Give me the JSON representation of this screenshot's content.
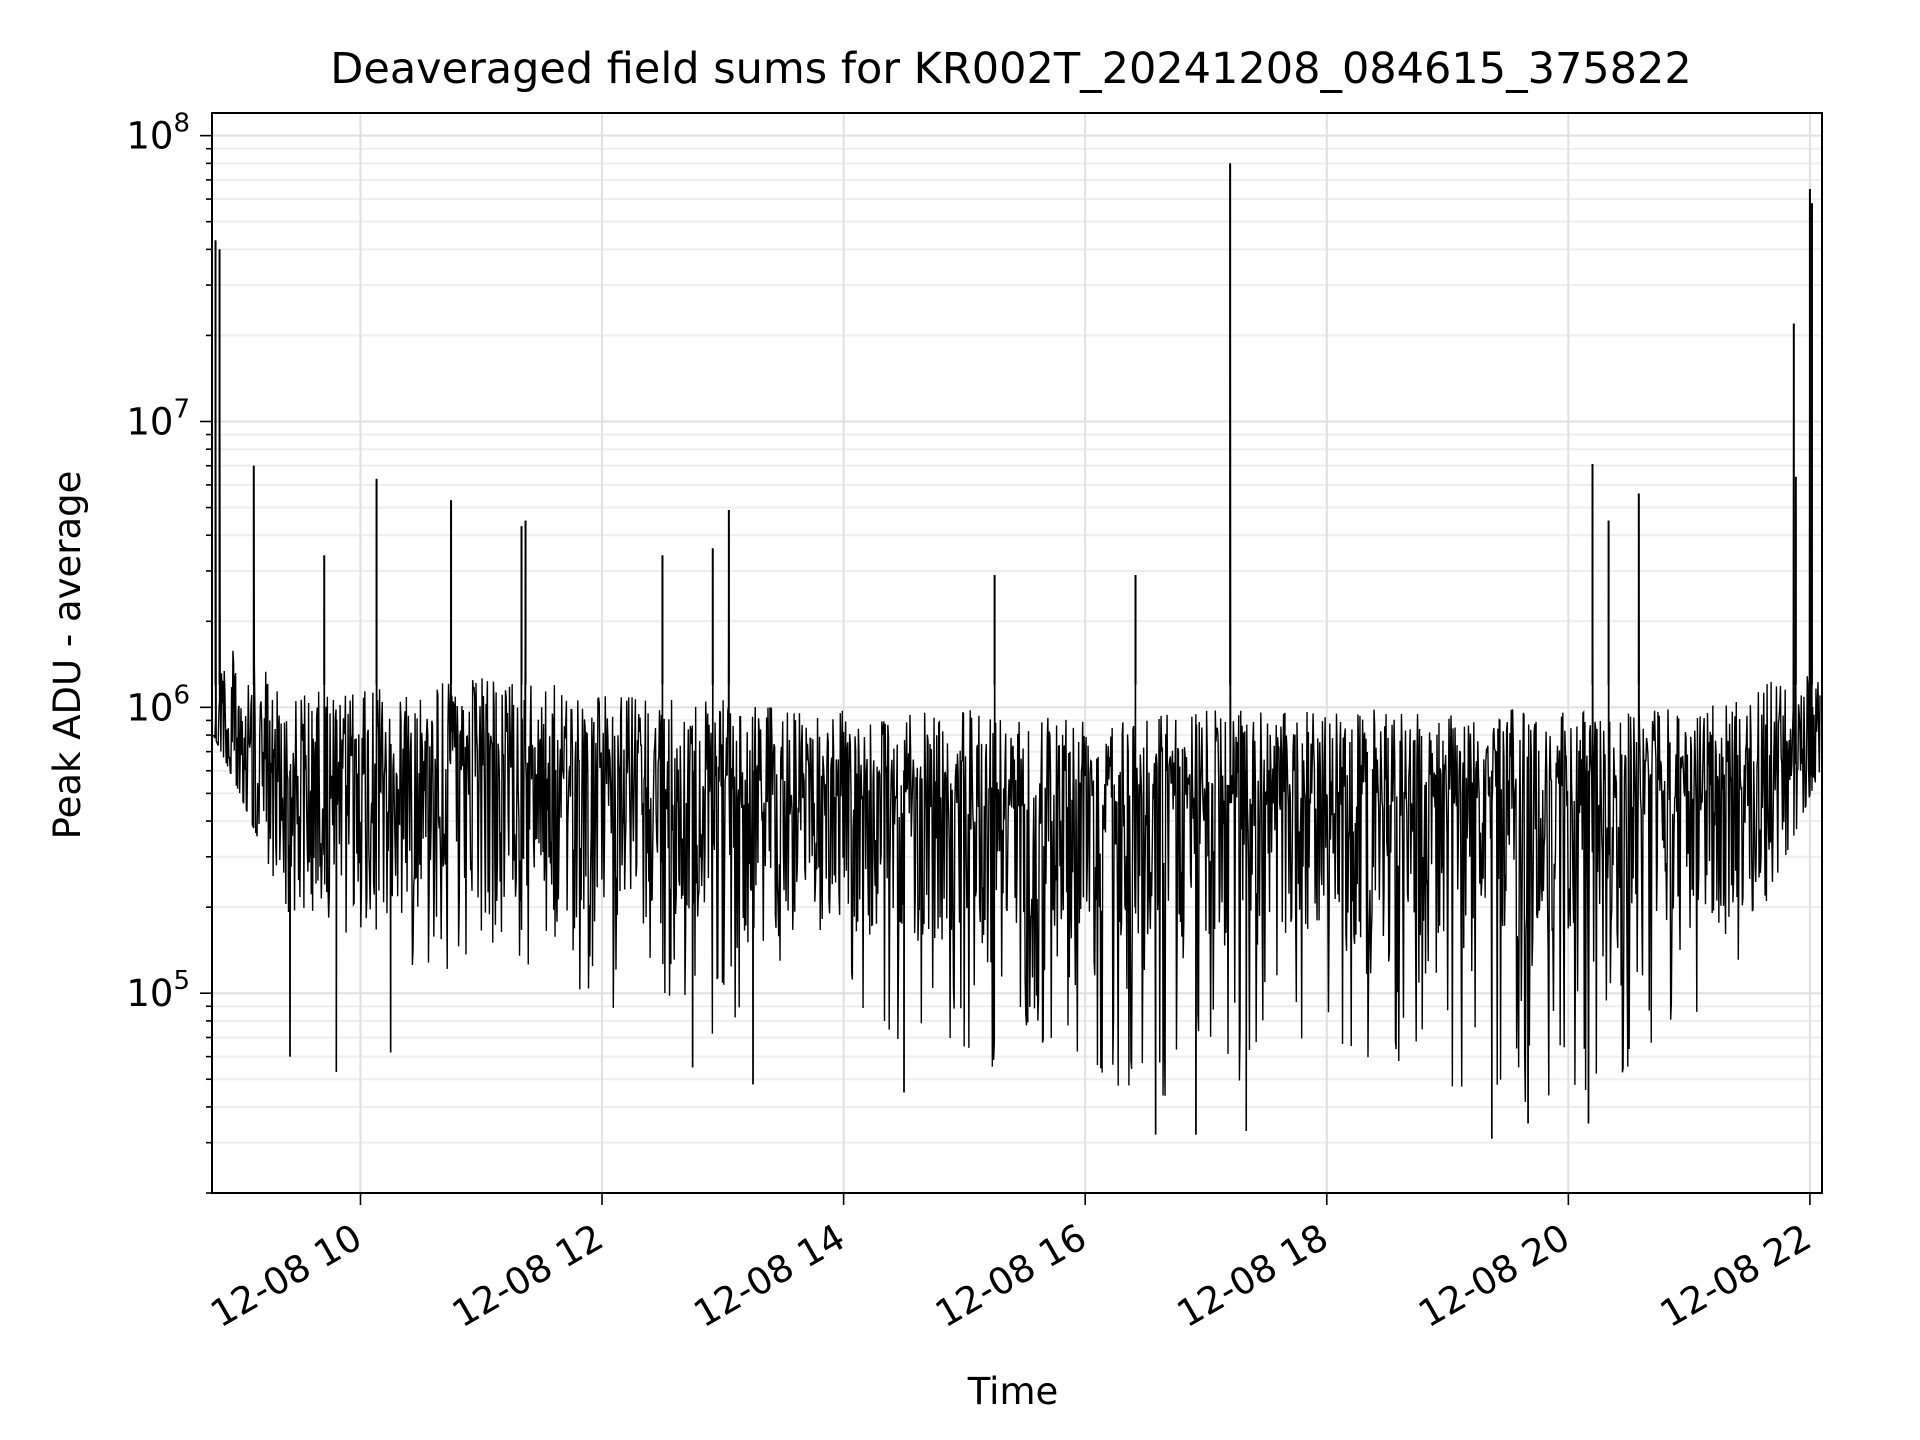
{
  "chart_data": {
    "type": "line",
    "title": "Deaveraged field sums for KR002T_20241208_084615_375822",
    "xlabel": "Time",
    "ylabel": "Peak ADU - average",
    "y_scale": "log",
    "ylim": [
      20000,
      120000000
    ],
    "xlim": [
      "2024-12-08T08:46:15",
      "2024-12-08T22:06:00"
    ],
    "grid": true,
    "legend": "none",
    "x_ticks": [
      {
        "t": "2024-12-08T10:00:00",
        "label": "12-08 10"
      },
      {
        "t": "2024-12-08T12:00:00",
        "label": "12-08 12"
      },
      {
        "t": "2024-12-08T14:00:00",
        "label": "12-08 14"
      },
      {
        "t": "2024-12-08T16:00:00",
        "label": "12-08 16"
      },
      {
        "t": "2024-12-08T18:00:00",
        "label": "12-08 18"
      },
      {
        "t": "2024-12-08T20:00:00",
        "label": "12-08 20"
      },
      {
        "t": "2024-12-08T22:00:00",
        "label": "12-08 22"
      }
    ],
    "y_ticks": [
      {
        "value": 100000,
        "base": "10",
        "exp": "5"
      },
      {
        "value": 1000000,
        "base": "10",
        "exp": "6"
      },
      {
        "value": 10000000,
        "base": "10",
        "exp": "7"
      },
      {
        "value": 100000000,
        "base": "10",
        "exp": "8"
      }
    ],
    "series": [
      {
        "color": "#000000",
        "envelope": [
          {
            "t": "2024-12-08T08:47:00",
            "high": 2500000,
            "low": 800000
          },
          {
            "t": "2024-12-08T09:00:00",
            "high": 2000000,
            "low": 500000
          },
          {
            "t": "2024-12-08T09:30:00",
            "high": 1500000,
            "low": 150000
          },
          {
            "t": "2024-12-08T10:00:00",
            "high": 1500000,
            "low": 150000
          },
          {
            "t": "2024-12-08T10:30:00",
            "high": 1600000,
            "low": 120000
          },
          {
            "t": "2024-12-08T11:00:00",
            "high": 1700000,
            "low": 120000
          },
          {
            "t": "2024-12-08T11:30:00",
            "high": 1600000,
            "low": 110000
          },
          {
            "t": "2024-12-08T12:00:00",
            "high": 1500000,
            "low": 90000
          },
          {
            "t": "2024-12-08T12:30:00",
            "high": 1400000,
            "low": 80000
          },
          {
            "t": "2024-12-08T13:00:00",
            "high": 1400000,
            "low": 70000
          },
          {
            "t": "2024-12-08T13:30:00",
            "high": 1300000,
            "low": 120000
          },
          {
            "t": "2024-12-08T14:00:00",
            "high": 1300000,
            "low": 90000
          },
          {
            "t": "2024-12-08T14:30:00",
            "high": 1250000,
            "low": 60000
          },
          {
            "t": "2024-12-08T15:00:00",
            "high": 1300000,
            "low": 55000
          },
          {
            "t": "2024-12-08T15:30:00",
            "high": 1300000,
            "low": 55000
          },
          {
            "t": "2024-12-08T16:00:00",
            "high": 1300000,
            "low": 50000
          },
          {
            "t": "2024-12-08T16:30:00",
            "high": 1300000,
            "low": 45000
          },
          {
            "t": "2024-12-08T17:00:00",
            "high": 1300000,
            "low": 40000
          },
          {
            "t": "2024-12-08T17:30:00",
            "high": 1300000,
            "low": 50000
          },
          {
            "t": "2024-12-08T18:00:00",
            "high": 1300000,
            "low": 55000
          },
          {
            "t": "2024-12-08T18:30:00",
            "high": 1300000,
            "low": 55000
          },
          {
            "t": "2024-12-08T19:00:00",
            "high": 1300000,
            "low": 45000
          },
          {
            "t": "2024-12-08T19:30:00",
            "high": 1300000,
            "low": 40000
          },
          {
            "t": "2024-12-08T20:00:00",
            "high": 1300000,
            "low": 40000
          },
          {
            "t": "2024-12-08T20:30:00",
            "high": 1300000,
            "low": 50000
          },
          {
            "t": "2024-12-08T21:00:00",
            "high": 1300000,
            "low": 70000
          },
          {
            "t": "2024-12-08T21:30:00",
            "high": 1500000,
            "low": 150000
          },
          {
            "t": "2024-12-08T21:55:00",
            "high": 1800000,
            "low": 400000
          },
          {
            "t": "2024-12-08T22:05:00",
            "high": 1600000,
            "low": 600000
          }
        ],
        "spikes": [
          {
            "t": "2024-12-08T08:48:00",
            "value": 43000000
          },
          {
            "t": "2024-12-08T08:50:00",
            "value": 40000000
          },
          {
            "t": "2024-12-08T09:07:00",
            "value": 7000000
          },
          {
            "t": "2024-12-08T09:42:00",
            "value": 3400000
          },
          {
            "t": "2024-12-08T10:08:00",
            "value": 6300000
          },
          {
            "t": "2024-12-08T10:45:00",
            "value": 5300000
          },
          {
            "t": "2024-12-08T11:20:00",
            "value": 4300000
          },
          {
            "t": "2024-12-08T11:22:00",
            "value": 4500000
          },
          {
            "t": "2024-12-08T12:30:00",
            "value": 3400000
          },
          {
            "t": "2024-12-08T12:55:00",
            "value": 3600000
          },
          {
            "t": "2024-12-08T13:03:00",
            "value": 4900000
          },
          {
            "t": "2024-12-08T15:15:00",
            "value": 2900000
          },
          {
            "t": "2024-12-08T16:25:00",
            "value": 2900000
          },
          {
            "t": "2024-12-08T17:12:00",
            "value": 80000000
          },
          {
            "t": "2024-12-08T20:12:00",
            "value": 7100000
          },
          {
            "t": "2024-12-08T20:20:00",
            "value": 4500000
          },
          {
            "t": "2024-12-08T20:35:00",
            "value": 5600000
          },
          {
            "t": "2024-12-08T21:52:00",
            "value": 22000000
          },
          {
            "t": "2024-12-08T21:53:00",
            "value": 6400000
          },
          {
            "t": "2024-12-08T22:00:00",
            "value": 65000000
          },
          {
            "t": "2024-12-08T22:01:00",
            "value": 58000000
          }
        ],
        "dips": [
          {
            "t": "2024-12-08T09:25:00",
            "value": 60000
          },
          {
            "t": "2024-12-08T09:48:00",
            "value": 53000
          },
          {
            "t": "2024-12-08T10:15:00",
            "value": 62000
          },
          {
            "t": "2024-12-08T12:45:00",
            "value": 55000
          },
          {
            "t": "2024-12-08T13:15:00",
            "value": 48000
          },
          {
            "t": "2024-12-08T14:30:00",
            "value": 45000
          },
          {
            "t": "2024-12-08T16:35:00",
            "value": 32000
          },
          {
            "t": "2024-12-08T16:55:00",
            "value": 32000
          },
          {
            "t": "2024-12-08T17:20:00",
            "value": 33000
          },
          {
            "t": "2024-12-08T19:22:00",
            "value": 31000
          },
          {
            "t": "2024-12-08T19:40:00",
            "value": 35000
          },
          {
            "t": "2024-12-08T20:10:00",
            "value": 35000
          }
        ]
      }
    ]
  }
}
